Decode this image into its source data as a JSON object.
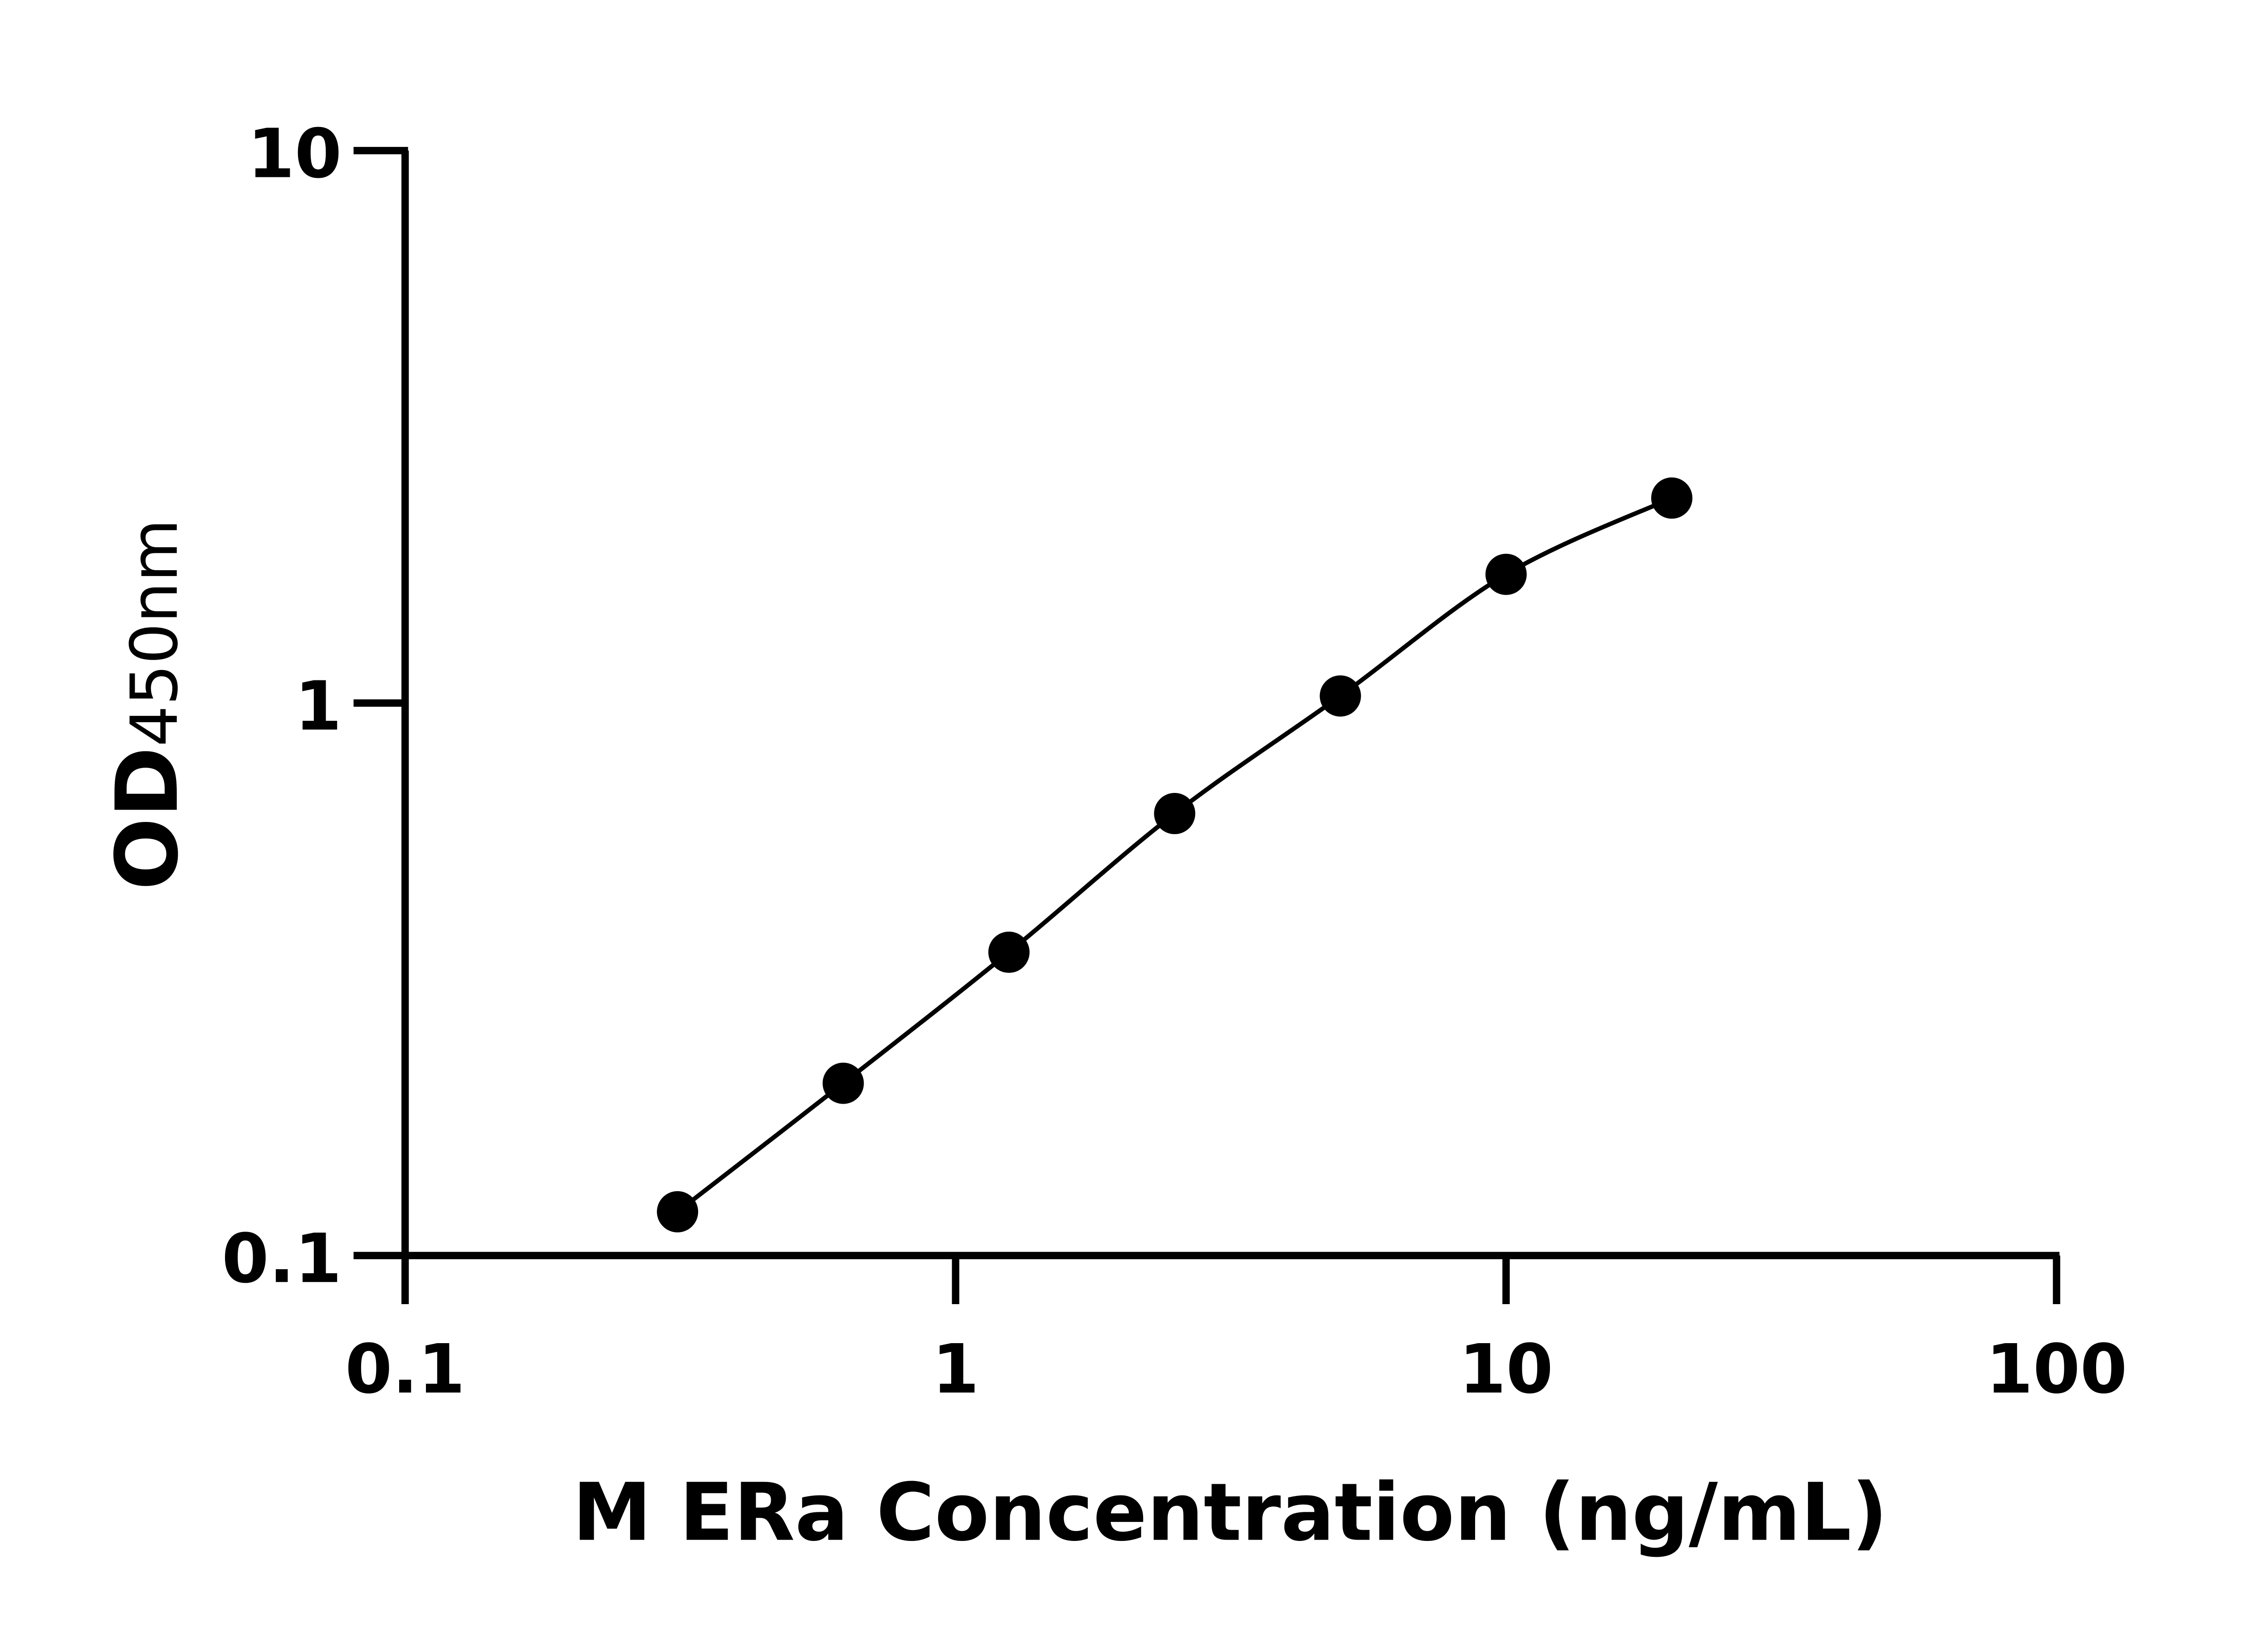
{
  "chart_data": {
    "type": "scatter",
    "title": "",
    "xlabel": "M ERa Concentration (ng/mL)",
    "ylabel_main": "OD",
    "ylabel_sub": "450nm",
    "x_scale": "log",
    "y_scale": "log",
    "xlim": [
      0.1,
      100
    ],
    "ylim": [
      0.1,
      10
    ],
    "x_ticks": [
      "0.1",
      "1",
      "10",
      "100"
    ],
    "y_ticks": [
      "0.1",
      "1",
      "10"
    ],
    "grid": false,
    "fit_curve": true,
    "color": "#000000",
    "points": [
      {
        "x": 0.3125,
        "y": 0.12
      },
      {
        "x": 0.625,
        "y": 0.205
      },
      {
        "x": 1.25,
        "y": 0.354
      },
      {
        "x": 2.5,
        "y": 0.631
      },
      {
        "x": 5,
        "y": 1.03
      },
      {
        "x": 10,
        "y": 1.71
      },
      {
        "x": 20,
        "y": 2.35
      }
    ]
  }
}
